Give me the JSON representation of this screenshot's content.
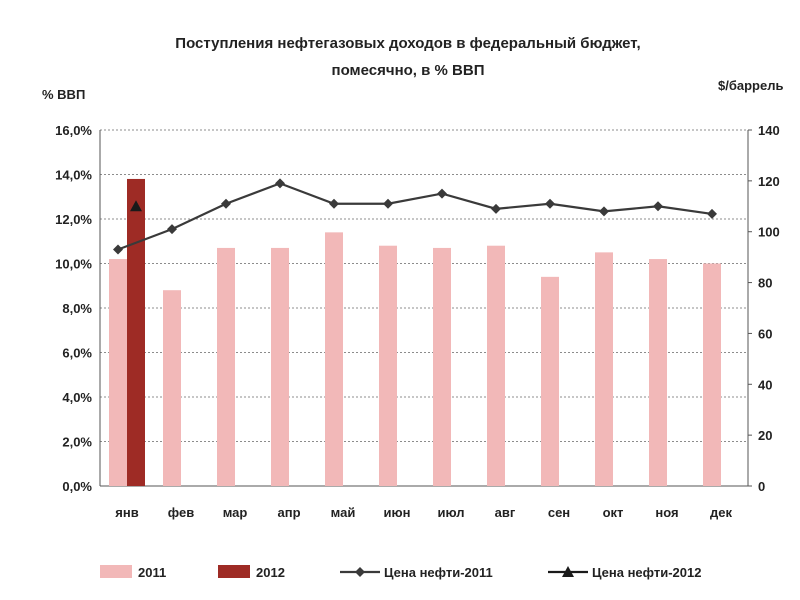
{
  "chart_data": {
    "type": "bar",
    "title_lines": [
      "Поступления нефтегазовых доходов в федеральный бюджет,",
      "помесячно, в % ВВП"
    ],
    "ylabel_left": "% ВВП",
    "ylabel_right": "$/баррель",
    "categories": [
      "янв",
      "фев",
      "мар",
      "апр",
      "май",
      "июн",
      "июл",
      "авг",
      "сен",
      "окт",
      "ноя",
      "дек"
    ],
    "ylim_left": [
      0,
      16
    ],
    "ylim_right": [
      0,
      140
    ],
    "left_ticks": [
      "0,0%",
      "2,0%",
      "4,0%",
      "6,0%",
      "8,0%",
      "10,0%",
      "12,0%",
      "14,0%",
      "16,0%"
    ],
    "right_ticks": [
      "0",
      "20",
      "40",
      "60",
      "80",
      "100",
      "120",
      "140"
    ],
    "grid": true,
    "legend_position": "bottom",
    "series": [
      {
        "name": "2011",
        "kind": "bar",
        "axis": "left",
        "color": "#f2b8b8",
        "values": [
          10.2,
          8.8,
          10.7,
          10.7,
          11.4,
          10.8,
          10.7,
          10.8,
          9.4,
          10.5,
          10.2,
          10.0
        ]
      },
      {
        "name": "2012",
        "kind": "bar",
        "axis": "left",
        "color": "#9e2b25",
        "values": [
          13.8,
          null,
          null,
          null,
          null,
          null,
          null,
          null,
          null,
          null,
          null,
          null
        ]
      },
      {
        "name": "Цена нефти-2011",
        "kind": "line",
        "axis": "right",
        "color": "#3a3a3a",
        "marker": "diamond",
        "values": [
          93,
          101,
          111,
          119,
          111,
          111,
          115,
          109,
          111,
          108,
          110,
          107
        ]
      },
      {
        "name": "Цена нефти-2012",
        "kind": "line",
        "axis": "right",
        "color": "#1a1a1a",
        "marker": "triangle",
        "values": [
          110,
          null,
          null,
          null,
          null,
          null,
          null,
          null,
          null,
          null,
          null,
          null
        ]
      }
    ]
  }
}
